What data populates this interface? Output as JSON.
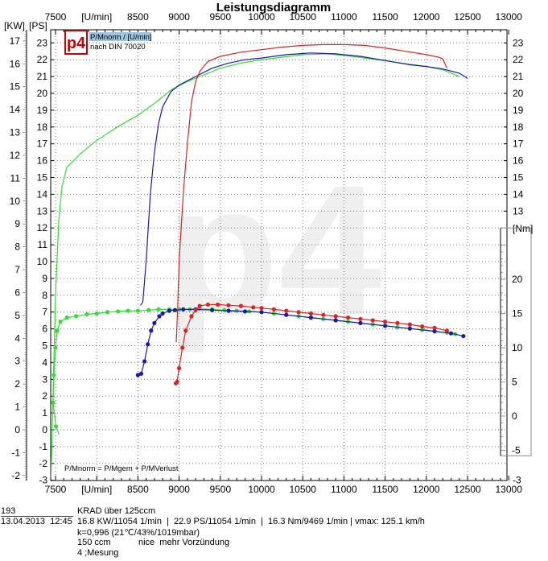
{
  "chart_data": {
    "type": "line",
    "title": "Leistungsdiagramm",
    "xlabel": "[U/min]",
    "ylabel_left_kw": "[KW]",
    "ylabel_left_ps": "[PS]",
    "ylabel_right_nm": "[Nm]",
    "xlim": [
      7441,
      13000
    ],
    "ps_lim": [
      -3,
      23.8
    ],
    "nm_lim": [
      -6,
      25
    ],
    "x_ticks": [
      7500,
      8500,
      9000,
      9500,
      10000,
      10500,
      11000,
      11500,
      12000,
      12500,
      13000
    ],
    "kw_ticks": [
      17,
      16,
      15,
      14,
      13,
      12,
      11,
      10,
      9,
      8,
      7,
      6,
      5,
      4,
      3,
      2,
      1,
      0,
      -1,
      -2
    ],
    "ps_ticks": [
      23,
      22,
      21,
      20,
      19,
      18,
      17,
      16,
      15,
      14,
      13,
      12,
      11,
      10,
      9,
      8,
      7,
      6,
      5,
      4,
      3,
      2,
      1,
      0,
      -1,
      -2,
      -3
    ],
    "ps_ticks_right": [
      23,
      22,
      21,
      20,
      19,
      18,
      17,
      16,
      15,
      14,
      13
    ],
    "nm_ticks": [
      20,
      15,
      10,
      5,
      0,
      -5
    ],
    "ps_bottom_right": -3,
    "grid": true,
    "legend": {
      "logo": "p4",
      "line1": "P/Mnorm / [U/min]",
      "line2": "nach DIN 70020"
    },
    "formula": "P/Mnorm = P/Mgem + P/MVerlust",
    "watermark": "p4",
    "series": [
      {
        "name": "green power",
        "unit": "PS",
        "color": "#33dd33",
        "x": [
          7445,
          7470,
          7500,
          7540,
          7580,
          7637,
          7800,
          8000,
          8250,
          8500,
          8700,
          8900,
          9100,
          9300,
          9500,
          9750,
          10000,
          10250,
          10500,
          10800,
          11100,
          11400,
          11700,
          12000,
          12200,
          12400
        ],
        "y": [
          -2.8,
          2,
          8,
          12.5,
          14.5,
          15.6,
          16.4,
          17.2,
          18,
          18.7,
          19.4,
          20.2,
          20.7,
          21.1,
          21.5,
          21.8,
          22.0,
          22.15,
          22.3,
          22.35,
          22.2,
          22.0,
          21.8,
          21.6,
          21.4,
          21.0
        ]
      },
      {
        "name": "blue power",
        "unit": "PS",
        "color": "#1a1aaa",
        "x": [
          8530,
          8560,
          8600,
          8650,
          8700,
          8750,
          8800,
          8900,
          9000,
          9200,
          9400,
          9600,
          9800,
          10000,
          10300,
          10600,
          10900,
          11200,
          11500,
          11800,
          12000,
          12200,
          12400,
          12500
        ],
        "y": [
          7.4,
          7.6,
          10,
          14,
          16.5,
          18.2,
          19.2,
          20.1,
          20.5,
          21,
          21.5,
          21.8,
          22.0,
          22.1,
          22.3,
          22.4,
          22.35,
          22.2,
          21.95,
          21.7,
          21.6,
          21.45,
          21.2,
          20.9
        ]
      },
      {
        "name": "red power",
        "unit": "PS",
        "color": "#dd2222",
        "x": [
          8965,
          8980,
          9000,
          9050,
          9100,
          9150,
          9200,
          9250,
          9350,
          9500,
          9750,
          10000,
          10250,
          10500,
          10750,
          11000,
          11250,
          11500,
          11750,
          12000,
          12150,
          12200,
          12250
        ],
        "y": [
          5.2,
          7,
          10,
          14,
          17,
          19.5,
          20.7,
          21.3,
          21.9,
          22.2,
          22.45,
          22.6,
          22.75,
          22.85,
          22.9,
          22.9,
          22.85,
          22.7,
          22.5,
          22.3,
          22.15,
          22.05,
          21.5
        ]
      },
      {
        "name": "green torque",
        "unit": "Nm",
        "color": "#33dd33",
        "markers": true,
        "x": [
          7545,
          7505,
          7470,
          7480,
          7500,
          7520,
          7560,
          7637,
          7750,
          7880,
          8000,
          8130,
          8260,
          8380,
          8500,
          8630,
          8750,
          8880,
          9000,
          9130,
          9250,
          9400,
          9550,
          9700,
          9850,
          10000,
          10150,
          10300,
          10450,
          10600,
          10750,
          10900,
          11050,
          11200,
          11350,
          11500,
          11650,
          11800,
          11950,
          12100,
          12250,
          12350
        ],
        "y": [
          -2.7,
          -1.5,
          2,
          6,
          10,
          12.5,
          13.8,
          14.4,
          14.6,
          14.9,
          15.0,
          15.2,
          15.3,
          15.4,
          15.4,
          15.5,
          15.6,
          15.6,
          15.6,
          15.6,
          15.7,
          15.6,
          15.5,
          15.4,
          15.3,
          15.2,
          15.0,
          14.8,
          14.6,
          14.4,
          14.2,
          14.0,
          13.8,
          13.6,
          13.4,
          13.2,
          13.0,
          12.8,
          12.6,
          12.4,
          12.2,
          12.0
        ]
      },
      {
        "name": "blue torque",
        "unit": "Nm",
        "color": "#1a1aaa",
        "markers": true,
        "x": [
          8500,
          8540,
          8580,
          8620,
          8660,
          8700,
          8760,
          8800,
          8880,
          8950,
          9050,
          9200,
          9400,
          9600,
          9800,
          10000,
          10300,
          10600,
          10900,
          11200,
          11500,
          11800,
          12100,
          12300,
          12450
        ],
        "y": [
          6.0,
          6.2,
          8,
          10.5,
          12.5,
          13.6,
          14.6,
          15,
          15.4,
          15.5,
          15.6,
          15.6,
          15.5,
          15.4,
          15.3,
          15.2,
          14.8,
          14.4,
          14.0,
          13.6,
          13.2,
          12.8,
          12.4,
          12.1,
          11.7
        ]
      },
      {
        "name": "red torque",
        "unit": "Nm",
        "color": "#dd2222",
        "markers": true,
        "x": [
          8960,
          8975,
          9000,
          9040,
          9080,
          9150,
          9200,
          9250,
          9350,
          9469,
          9600,
          9750,
          9900,
          10000,
          10150,
          10300,
          10450,
          10600,
          10750,
          10900,
          11050,
          11200,
          11350,
          11500,
          11650,
          11800,
          11950,
          12100,
          12250
        ],
        "y": [
          4.8,
          5,
          7,
          10,
          12.5,
          14.6,
          15.5,
          16.1,
          16.3,
          16.3,
          16.2,
          16.1,
          15.9,
          15.8,
          15.6,
          15.4,
          15.2,
          15.0,
          14.8,
          14.6,
          14.4,
          14.2,
          14.0,
          13.8,
          13.6,
          13.4,
          13.1,
          12.9,
          12.5
        ]
      }
    ]
  },
  "info": {
    "id": "193",
    "datetime": "13.04.2013  12:45",
    "class": "KRAD über 125ccm",
    "results": "16.8 KW/11054 1/min  |  22.9 PS/11054 1/min  |  16.3 Nm/9469 1/min | vmax: 125.1 km/h",
    "correction": "k=0,996 (21℃/43%/1019mbar)",
    "displacement": "150 ccm",
    "note": "nice  mehr Vorzündung",
    "run": "4 ;Mesung"
  }
}
